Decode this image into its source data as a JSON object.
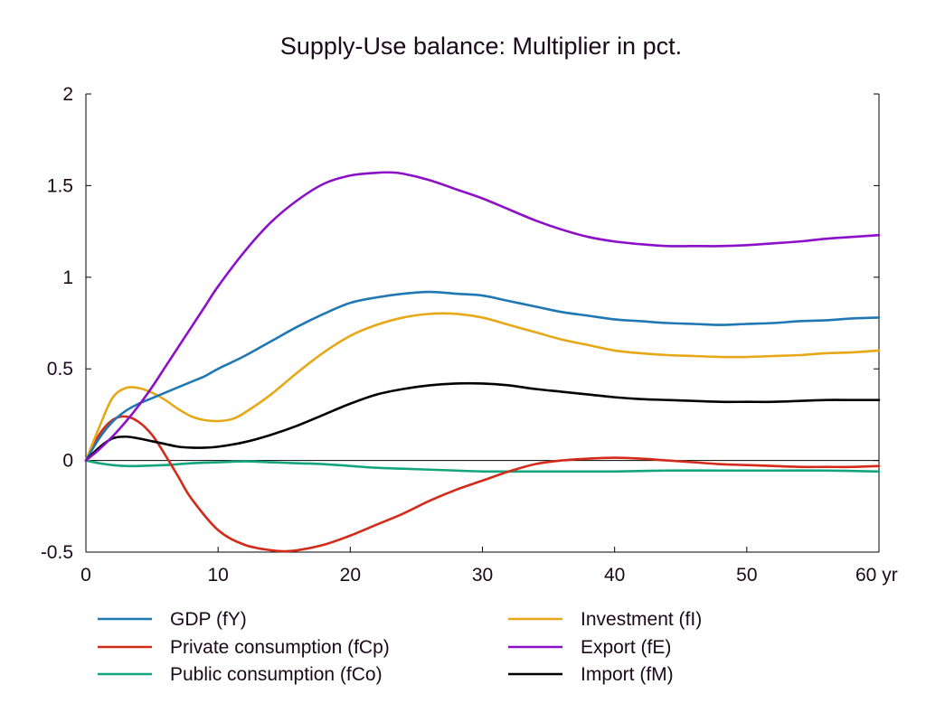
{
  "chart_data": {
    "type": "line",
    "title": "Supply-Use balance: Multiplier in pct.",
    "xlabel": "",
    "ylabel": "",
    "x_unit_label": "yr",
    "xlim": [
      0,
      60
    ],
    "ylim": [
      -0.5,
      2
    ],
    "x_ticks": [
      0,
      10,
      20,
      30,
      40,
      50,
      60
    ],
    "x_tick_labels": [
      "0",
      "10",
      "20",
      "30",
      "40",
      "50",
      "60 yr"
    ],
    "y_ticks": [
      -0.5,
      0,
      0.5,
      1,
      1.5,
      2
    ],
    "y_tick_labels": [
      "-0.5",
      "0",
      "0.5",
      "1",
      "1.5",
      "2"
    ],
    "grid": false,
    "zero_line": true,
    "legend_position": "bottom",
    "series": [
      {
        "name": "GDP (fY)",
        "color": "#1f77b4",
        "x": [
          0,
          1,
          2,
          3,
          4,
          5,
          6,
          7,
          8,
          9,
          10,
          12,
          14,
          16,
          18,
          20,
          22,
          24,
          26,
          28,
          30,
          32,
          34,
          36,
          38,
          40,
          42,
          44,
          46,
          48,
          50,
          52,
          54,
          56,
          58,
          60
        ],
        "y": [
          0,
          0.12,
          0.21,
          0.27,
          0.31,
          0.34,
          0.37,
          0.4,
          0.43,
          0.46,
          0.5,
          0.57,
          0.65,
          0.73,
          0.8,
          0.86,
          0.89,
          0.91,
          0.92,
          0.91,
          0.9,
          0.87,
          0.84,
          0.81,
          0.79,
          0.77,
          0.76,
          0.75,
          0.745,
          0.74,
          0.745,
          0.75,
          0.76,
          0.765,
          0.775,
          0.78
        ]
      },
      {
        "name": "Investment (fI)",
        "color": "#e6a817",
        "x": [
          0,
          1,
          2,
          3,
          4,
          5,
          6,
          7,
          8,
          9,
          10,
          11,
          12,
          14,
          16,
          18,
          20,
          22,
          24,
          26,
          28,
          30,
          32,
          34,
          36,
          38,
          40,
          42,
          44,
          46,
          48,
          50,
          52,
          54,
          56,
          58,
          60
        ],
        "y": [
          0,
          0.18,
          0.34,
          0.395,
          0.395,
          0.37,
          0.33,
          0.28,
          0.24,
          0.22,
          0.215,
          0.225,
          0.26,
          0.36,
          0.48,
          0.59,
          0.68,
          0.74,
          0.78,
          0.8,
          0.8,
          0.78,
          0.74,
          0.7,
          0.66,
          0.63,
          0.6,
          0.585,
          0.575,
          0.57,
          0.565,
          0.565,
          0.57,
          0.575,
          0.585,
          0.59,
          0.6
        ]
      },
      {
        "name": "Private consumption (fCp)",
        "color": "#d42a1a",
        "x": [
          0,
          1,
          2,
          3,
          4,
          5,
          6,
          7,
          8,
          10,
          12,
          14,
          15,
          16,
          18,
          20,
          22,
          24,
          26,
          28,
          30,
          32,
          34,
          36,
          38,
          40,
          42,
          44,
          46,
          48,
          50,
          52,
          54,
          56,
          58,
          60
        ],
        "y": [
          0,
          0.14,
          0.22,
          0.24,
          0.21,
          0.14,
          0.03,
          -0.09,
          -0.21,
          -0.38,
          -0.46,
          -0.49,
          -0.495,
          -0.49,
          -0.46,
          -0.41,
          -0.35,
          -0.29,
          -0.22,
          -0.16,
          -0.11,
          -0.06,
          -0.02,
          0.0,
          0.01,
          0.015,
          0.01,
          0.0,
          -0.01,
          -0.02,
          -0.025,
          -0.03,
          -0.035,
          -0.035,
          -0.035,
          -0.03
        ]
      },
      {
        "name": "Export (fE)",
        "color": "#8b10c8",
        "x": [
          0,
          1,
          2,
          3,
          4,
          5,
          6,
          7,
          8,
          9,
          10,
          12,
          14,
          16,
          18,
          20,
          22,
          23,
          24,
          26,
          28,
          30,
          32,
          34,
          36,
          38,
          40,
          42,
          44,
          46,
          48,
          50,
          52,
          54,
          56,
          58,
          60
        ],
        "y": [
          0,
          0.06,
          0.13,
          0.21,
          0.3,
          0.4,
          0.51,
          0.62,
          0.73,
          0.84,
          0.95,
          1.14,
          1.3,
          1.42,
          1.51,
          1.555,
          1.57,
          1.572,
          1.565,
          1.53,
          1.48,
          1.43,
          1.37,
          1.31,
          1.26,
          1.22,
          1.195,
          1.18,
          1.17,
          1.17,
          1.17,
          1.175,
          1.185,
          1.195,
          1.21,
          1.22,
          1.23
        ]
      },
      {
        "name": "Public consumption (fCo)",
        "color": "#12a57e",
        "x": [
          0,
          1,
          2,
          3,
          4,
          6,
          8,
          10,
          12,
          14,
          16,
          18,
          20,
          22,
          24,
          26,
          28,
          30,
          32,
          34,
          36,
          38,
          40,
          44,
          48,
          52,
          56,
          60
        ],
        "y": [
          0,
          -0.015,
          -0.025,
          -0.03,
          -0.03,
          -0.025,
          -0.015,
          -0.01,
          -0.005,
          -0.01,
          -0.015,
          -0.02,
          -0.03,
          -0.04,
          -0.045,
          -0.05,
          -0.055,
          -0.06,
          -0.06,
          -0.06,
          -0.06,
          -0.06,
          -0.06,
          -0.055,
          -0.055,
          -0.055,
          -0.055,
          -0.06
        ]
      },
      {
        "name": "Import (fM)",
        "color": "#000000",
        "x": [
          0,
          1,
          2,
          3,
          4,
          5,
          6,
          7,
          8,
          9,
          10,
          12,
          14,
          16,
          18,
          20,
          22,
          24,
          26,
          28,
          30,
          32,
          34,
          36,
          38,
          40,
          42,
          44,
          46,
          48,
          50,
          52,
          54,
          56,
          58,
          60
        ],
        "y": [
          0,
          0.07,
          0.12,
          0.13,
          0.12,
          0.105,
          0.09,
          0.075,
          0.07,
          0.07,
          0.075,
          0.1,
          0.14,
          0.19,
          0.25,
          0.31,
          0.36,
          0.39,
          0.41,
          0.42,
          0.42,
          0.41,
          0.39,
          0.375,
          0.36,
          0.345,
          0.335,
          0.33,
          0.325,
          0.32,
          0.32,
          0.32,
          0.325,
          0.33,
          0.33,
          0.33
        ]
      }
    ],
    "legend_order": [
      {
        "series": 0,
        "column": 0,
        "row": 0
      },
      {
        "series": 1,
        "column": 1,
        "row": 0
      },
      {
        "series": 2,
        "column": 0,
        "row": 1
      },
      {
        "series": 3,
        "column": 1,
        "row": 1
      },
      {
        "series": 4,
        "column": 0,
        "row": 2
      },
      {
        "series": 5,
        "column": 1,
        "row": 2
      }
    ]
  }
}
